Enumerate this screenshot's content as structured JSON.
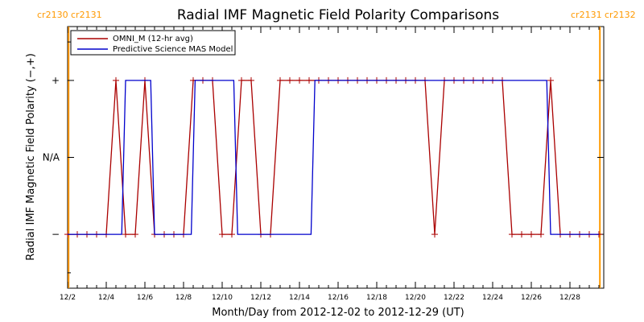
{
  "chart_data": {
    "type": "line",
    "title": "Radial IMF Magnetic Field Polarity Comparisons",
    "xlabel": "Month/Day from 2012-12-02 to 2012-12-29 (UT)",
    "ylabel": "Radial IMF Magnetic Field Polarity (−,+)",
    "x_ticks": [
      "12/2",
      "12/4",
      "12/6",
      "12/8",
      "12/10",
      "12/12",
      "12/14",
      "12/16",
      "12/18",
      "12/20",
      "12/22",
      "12/24",
      "12/26",
      "12/28"
    ],
    "y_ticks": [
      "−",
      "N/A",
      "+"
    ],
    "xlim": [
      0,
      27.75
    ],
    "ylim": [
      -1.7,
      1.7
    ],
    "carrington_markers": [
      {
        "x": 0.05,
        "left_label": "cr2130",
        "right_label": "cr2131"
      },
      {
        "x": 27.55,
        "left_label": "cr2131",
        "right_label": "cr2132"
      }
    ],
    "legend_position": "top-left",
    "series": [
      {
        "name": "OMNI_M (12-hr avg)",
        "color": "#aa0000",
        "markers": true,
        "x": [
          0.0,
          0.5,
          1.0,
          1.5,
          2.0,
          2.5,
          3.0,
          3.5,
          4.0,
          4.5,
          5.0,
          5.5,
          6.0,
          6.5,
          7.0,
          7.5,
          8.0,
          8.5,
          9.0,
          9.5,
          10.0,
          10.5,
          11.0,
          11.5,
          12.0,
          12.5,
          13.0,
          13.5,
          14.0,
          14.5,
          15.0,
          15.5,
          16.0,
          16.5,
          17.0,
          17.5,
          18.0,
          18.5,
          19.0,
          19.5,
          20.0,
          20.5,
          21.0,
          21.5,
          22.0,
          22.5,
          23.0,
          23.5,
          24.0,
          24.5,
          25.0,
          25.5,
          26.0,
          26.5,
          27.0,
          27.5
        ],
        "y": [
          -1,
          -1,
          -1,
          -1,
          -1,
          1,
          -1,
          -1,
          1,
          -1,
          -1,
          -1,
          -1,
          1,
          1,
          1,
          -1,
          -1,
          1,
          1,
          -1,
          -1,
          1,
          1,
          1,
          1,
          1,
          1,
          1,
          1,
          1,
          1,
          1,
          1,
          1,
          1,
          1,
          1,
          -1,
          1,
          1,
          1,
          1,
          1,
          1,
          1,
          -1,
          -1,
          -1,
          -1,
          1,
          -1,
          -1,
          -1,
          -1,
          -1
        ]
      },
      {
        "name": "Predictive Science MAS Model",
        "color": "#0000cc",
        "markers": false,
        "x": [
          0.0,
          2.8,
          3.0,
          4.3,
          4.5,
          6.4,
          6.6,
          8.6,
          8.8,
          12.6,
          12.8,
          24.8,
          25.0,
          27.5
        ],
        "y": [
          -1,
          -1,
          1,
          1,
          -1,
          -1,
          1,
          1,
          -1,
          -1,
          1,
          1,
          -1,
          -1
        ]
      }
    ]
  }
}
